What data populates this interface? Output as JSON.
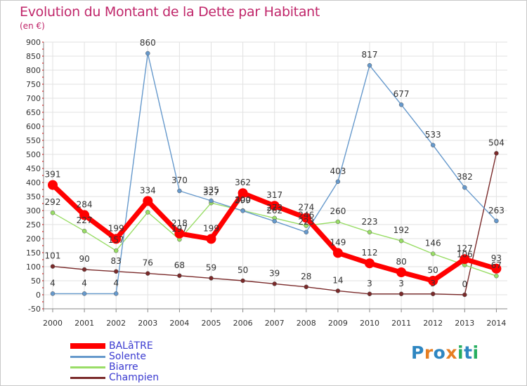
{
  "title": "Evolution du Montant de la Dette par Habitant",
  "subtitle": "(en €)",
  "logo": {
    "text": "Proxiti",
    "letters": [
      "P",
      "r",
      "o",
      "x",
      "i",
      "t",
      "i"
    ],
    "colors": [
      "#2e86c1",
      "#e67e22",
      "#2e86c1",
      "#e67e22",
      "#27ae60",
      "#2e86c1",
      "#27ae60"
    ]
  },
  "chart_data": {
    "type": "line",
    "categories": [
      "2000",
      "2001",
      "2002",
      "2003",
      "2004",
      "2005",
      "2006",
      "2007",
      "2008",
      "2009",
      "2010",
      "2011",
      "2012",
      "2013",
      "2014"
    ],
    "ylim": [
      -50,
      900
    ],
    "yticks": [
      "-50",
      "0",
      "50",
      "100",
      "150",
      "200",
      "250",
      "300",
      "350",
      "400",
      "450",
      "500",
      "550",
      "600",
      "650",
      "700",
      "750",
      "800",
      "850",
      "900"
    ],
    "grid": true,
    "legend_position": "bottom-left",
    "series": [
      {
        "name": "BALâTRE",
        "color": "#ff0000",
        "values": [
          391,
          284,
          199,
          334,
          218,
          199,
          362,
          317,
          274,
          149,
          112,
          80,
          50,
          127,
          93
        ],
        "labels": [
          "391",
          "284",
          "199",
          "334",
          "218",
          "199",
          "362",
          "317",
          "274",
          "149",
          "112",
          "80",
          "50",
          "127",
          "93"
        ]
      },
      {
        "name": "Solente",
        "color": "#6699cc",
        "values": [
          4,
          4,
          4,
          860,
          370,
          335,
          299,
          262,
          223,
          403,
          817,
          677,
          533,
          382,
          263
        ],
        "labels": [
          "4",
          "4",
          "4",
          "860",
          "370",
          "335",
          "299",
          "262",
          "223",
          "403",
          "817",
          "677",
          "533",
          "382",
          "263"
        ]
      },
      {
        "name": "Biarre",
        "color": "#99dd66",
        "values": [
          292,
          227,
          157,
          294,
          197,
          327,
          300,
          273,
          246,
          260,
          223,
          192,
          146,
          106,
          67
        ],
        "labels": [
          "292",
          "227",
          "157",
          "",
          "197",
          "327",
          "300",
          "273",
          "246",
          "260",
          "223",
          "192",
          "146",
          "106",
          "67"
        ]
      },
      {
        "name": "Champien",
        "color": "#7a2a2a",
        "values": [
          101,
          90,
          83,
          76,
          68,
          59,
          50,
          39,
          28,
          14,
          3,
          3,
          3,
          0,
          504
        ],
        "labels": [
          "101",
          "90",
          "83",
          "76",
          "68",
          "59",
          "50",
          "39",
          "28",
          "14",
          "3",
          "3",
          "3",
          "0",
          "504"
        ]
      }
    ]
  }
}
